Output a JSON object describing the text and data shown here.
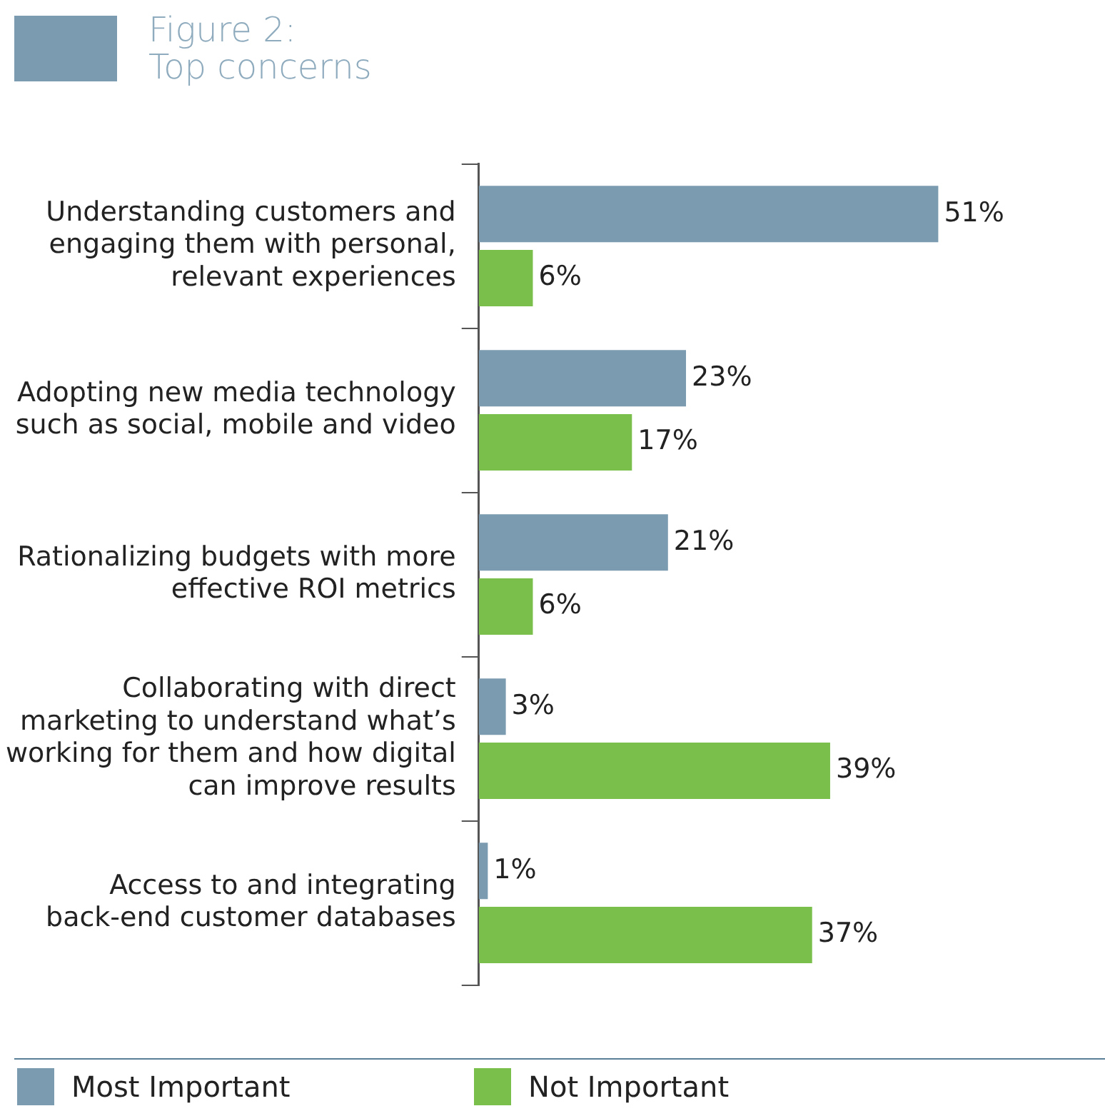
{
  "chart_data": {
    "type": "bar",
    "orientation": "horizontal",
    "title": "Figure 2:",
    "subtitle": "Top concerns",
    "categories": [
      "Understanding customers and engaging them with personal, relevant experiences",
      "Adopting new media technology such as social, mobile and video",
      "Rationalizing budgets with more effective ROI metrics",
      "Collaborating with direct marketing to understand what’s working for them and how digital can improve results",
      "Access to and integrating back-end customer databases"
    ],
    "series": [
      {
        "name": "Most Important",
        "color": "#7b9bb0",
        "values": [
          51,
          23,
          21,
          3,
          1
        ],
        "value_labels": [
          "51%",
          "23%",
          "21%",
          "3%",
          "1%"
        ]
      },
      {
        "name": "Not Important",
        "color": "#7abf4c",
        "values": [
          6,
          17,
          6,
          39,
          37
        ],
        "value_labels": [
          "6%",
          "17%",
          "6%",
          "39%",
          "37%"
        ]
      }
    ],
    "tick_labels": "y",
    "grid": false,
    "legend": "bottom"
  }
}
